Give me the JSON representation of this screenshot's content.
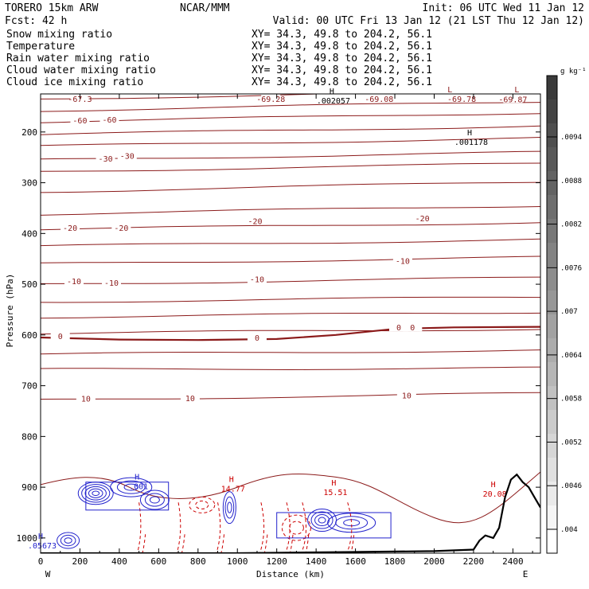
{
  "header": {
    "model": "TORERO  15km ARW",
    "center": "NCAR/MMM",
    "init": "Init: 06 UTC Wed 11 Jan 12",
    "fcst": "Fcst:   42 h",
    "valid": "Valid: 00 UTC Fri 13 Jan 12 (21 LST Thu 12 Jan 12)"
  },
  "fields": [
    {
      "name": "Snow mixing ratio",
      "xy": "XY=  34.3, 49.8 to 204.2, 56.1",
      "color": "#000000",
      "xy_color": "#cc0000"
    },
    {
      "name": "Temperature",
      "xy": "XY=  34.3, 49.8 to 204.2, 56.1",
      "color": "#cc0000",
      "xy_color": "#cc0000"
    },
    {
      "name": "Rain water mixing ratio",
      "xy": "XY=  34.3, 49.8 to 204.2, 56.1",
      "color": "#cc0000",
      "xy_color": "#cc0000"
    },
    {
      "name": "Cloud water mixing ratio",
      "xy": "XY=  34.3, 49.8 to 204.2, 56.1",
      "color": "#2222cc",
      "xy_color": "#2222cc"
    },
    {
      "name": "Cloud ice mixing ratio",
      "xy": "XY=  34.3, 49.8 to 204.2, 56.1",
      "color": "#000000",
      "xy_color": "#000000"
    }
  ],
  "colorbar": {
    "unit_label": "g kg⁻¹",
    "labels": [
      ".004",
      ".0046",
      ".0052",
      ".0058",
      ".0064",
      ".007",
      ".0076",
      ".0082",
      ".0088",
      ".0094"
    ],
    "top_color": "#3a3a3a",
    "bottom_color": "#ffffff"
  },
  "colors": {
    "temperature": "#8b1a1a",
    "rain": "#cc0000",
    "cloud_water": "#2222cc",
    "terrain": "#000000"
  },
  "chart_data": {
    "type": "contour",
    "xlabel": "Distance (km)",
    "ylabel": "Pressure (hPa)",
    "xlim": [
      0,
      2540
    ],
    "ylim": [
      1030,
      125
    ],
    "x_ticks": [
      0,
      200,
      400,
      600,
      800,
      1000,
      1200,
      1400,
      1600,
      1800,
      2000,
      2200,
      2400
    ],
    "y_ticks": [
      200,
      300,
      400,
      500,
      600,
      700,
      800,
      900,
      1000
    ],
    "x_end_labels": {
      "left": "W",
      "right": "E"
    },
    "temperature_contours": [
      {
        "p_left": 135,
        "p_right": 118,
        "label": ""
      },
      {
        "p_left": 158,
        "p_right": 140,
        "label": ""
      },
      {
        "p_left": 180,
        "p_right": 162,
        "label": "-60"
      },
      {
        "p_left": 205,
        "p_right": 188,
        "label": ""
      },
      {
        "p_left": 228,
        "p_right": 212,
        "label": ""
      },
      {
        "p_left": 255,
        "p_right": 240,
        "label": "-30"
      },
      {
        "p_left": 278,
        "p_right": 262,
        "label": ""
      },
      {
        "p_left": 318,
        "p_right": 298,
        "label": ""
      },
      {
        "p_left": 362,
        "p_right": 345,
        "label": ""
      },
      {
        "p_left": 392,
        "p_right": 378,
        "label": "-20"
      },
      {
        "p_left": 425,
        "p_right": 412,
        "label": ""
      },
      {
        "p_left": 460,
        "p_right": 447,
        "label": ""
      },
      {
        "p_left": 500,
        "p_right": 487,
        "label": "-10"
      },
      {
        "p_left": 535,
        "p_right": 525,
        "label": ""
      },
      {
        "p_left": 565,
        "p_right": 555,
        "label": ""
      },
      {
        "p_left": 597,
        "p_right": 588,
        "label": "0"
      },
      {
        "p_left": 638,
        "p_right": 630,
        "label": ""
      },
      {
        "p_left": 668,
        "p_right": 665,
        "label": ""
      },
      {
        "p_left": 728,
        "p_right": 715,
        "label": "10"
      }
    ],
    "zero_isotherm": {
      "x": [
        0,
        400,
        800,
        1200,
        1500,
        1800,
        2100,
        2540
      ],
      "p": [
        605,
        609,
        610,
        608,
        600,
        588,
        585,
        584
      ]
    },
    "contour_labels": [
      {
        "text": "-67.3",
        "x": 200,
        "p": 127,
        "color": "#8b1a1a"
      },
      {
        "text": "-69.28",
        "x": 1170,
        "p": 133,
        "color": "#8b1a1a"
      },
      {
        "text": "-69.08",
        "x": 1720,
        "p": 130,
        "color": "#8b1a1a"
      },
      {
        "text": "-69.78",
        "x": 2140,
        "p": 130,
        "color": "#8b1a1a"
      },
      {
        "text": "-69.87",
        "x": 2400,
        "p": 138,
        "color": "#8b1a1a"
      },
      {
        "text": "-60",
        "x": 200,
        "p": 180,
        "color": "#8b1a1a"
      },
      {
        "text": "-60",
        "x": 350,
        "p": 178,
        "color": "#8b1a1a"
      },
      {
        "text": "-30",
        "x": 330,
        "p": 255,
        "color": "#8b1a1a"
      },
      {
        "text": "-30",
        "x": 440,
        "p": 250,
        "color": "#8b1a1a"
      },
      {
        "text": "-20",
        "x": 150,
        "p": 392,
        "color": "#8b1a1a"
      },
      {
        "text": "-20",
        "x": 410,
        "p": 392,
        "color": "#8b1a1a"
      },
      {
        "text": "-20",
        "x": 1090,
        "p": 378,
        "color": "#8b1a1a"
      },
      {
        "text": "-20",
        "x": 1940,
        "p": 373,
        "color": "#8b1a1a"
      },
      {
        "text": "-10",
        "x": 170,
        "p": 497,
        "color": "#8b1a1a"
      },
      {
        "text": "-10",
        "x": 360,
        "p": 500,
        "color": "#8b1a1a"
      },
      {
        "text": "-10",
        "x": 1100,
        "p": 493,
        "color": "#8b1a1a"
      },
      {
        "text": "-10",
        "x": 1840,
        "p": 457,
        "color": "#8b1a1a"
      },
      {
        "text": "0",
        "x": 100,
        "p": 605,
        "color": "#8b1a1a"
      },
      {
        "text": "0",
        "x": 1100,
        "p": 608,
        "color": "#8b1a1a"
      },
      {
        "text": "0",
        "x": 1820,
        "p": 588,
        "color": "#8b1a1a"
      },
      {
        "text": "0",
        "x": 1890,
        "p": 588,
        "color": "#8b1a1a"
      },
      {
        "text": "10",
        "x": 230,
        "p": 728,
        "color": "#8b1a1a"
      },
      {
        "text": "10",
        "x": 760,
        "p": 727,
        "color": "#8b1a1a"
      },
      {
        "text": "10",
        "x": 1860,
        "p": 722,
        "color": "#8b1a1a"
      }
    ],
    "extrema": [
      {
        "type": "H",
        "value": ".002057",
        "x": 1480,
        "p": 128,
        "color": "#000000"
      },
      {
        "type": "H",
        "value": ".001178",
        "x": 2180,
        "p": 210,
        "color": "#000000"
      },
      {
        "type": "L",
        "value": "",
        "x": 2080,
        "p": 125,
        "color": "#8b1a1a"
      },
      {
        "type": "L",
        "value": "",
        "x": 2420,
        "p": 125,
        "color": "#8b1a1a"
      },
      {
        "type": "H",
        "value": "14.77",
        "x": 970,
        "p": 893,
        "color": "#cc0000"
      },
      {
        "type": "H",
        "value": "15.51",
        "x": 1490,
        "p": 900,
        "color": "#cc0000"
      },
      {
        "type": "H",
        "value": "20.08",
        "x": 2300,
        "p": 903,
        "color": "#cc0000"
      },
      {
        "type": "H",
        "value": ".001",
        "x": 490,
        "p": 888,
        "color": "#2222cc"
      },
      {
        "type": "H",
        "value": ".05673",
        "x": 0,
        "p": 1005,
        "color": "#2222cc"
      }
    ],
    "terrain": {
      "x": [
        0,
        500,
        1000,
        1500,
        2000,
        2200,
        2230,
        2260,
        2300,
        2330,
        2360,
        2390,
        2420,
        2450,
        2480,
        2510,
        2540
      ],
      "p": [
        1030,
        1030,
        1030,
        1028,
        1026,
        1023,
        1005,
        995,
        1000,
        980,
        920,
        885,
        875,
        890,
        900,
        920,
        940
      ]
    }
  }
}
